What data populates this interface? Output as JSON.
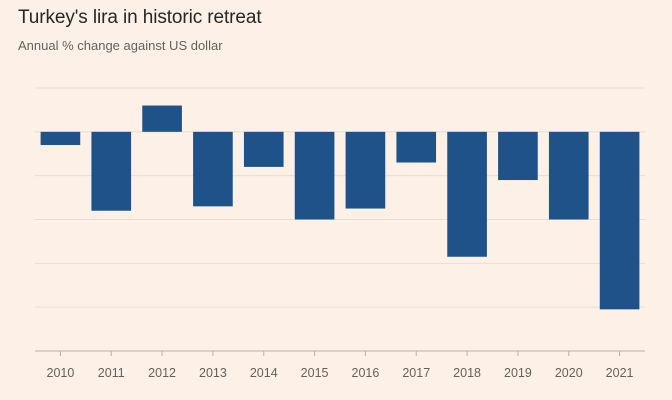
{
  "chart_data": {
    "type": "bar",
    "title": "Turkey's lira in historic retreat",
    "subtitle": "Annual % change against US dollar",
    "categories": [
      "2010",
      "2011",
      "2012",
      "2013",
      "2014",
      "2015",
      "2016",
      "2017",
      "2018",
      "2019",
      "2020",
      "2021"
    ],
    "values": [
      -3,
      -18,
      6,
      -17,
      -8,
      -20,
      -17.5,
      -7,
      -28.5,
      -11,
      -20,
      -40.5
    ],
    "ylim": [
      -50,
      10
    ],
    "gridlines": [
      10,
      0,
      -10,
      -20,
      -30,
      -40,
      -50
    ],
    "y_tick_labels_visible": false,
    "xlabel": "",
    "ylabel": "",
    "grid": true,
    "colors": {
      "bar": "#1f5289",
      "grid": "#e9ddd2",
      "axis": "#b8afa7",
      "background": "#fdf1e7"
    }
  }
}
